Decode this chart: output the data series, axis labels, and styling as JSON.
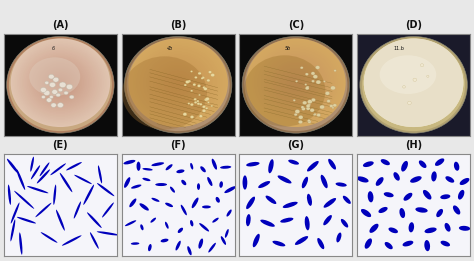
{
  "figure_width": 4.74,
  "figure_height": 2.61,
  "dpi": 100,
  "nrows": 2,
  "ncols": 4,
  "labels": [
    "(A)",
    "(B)",
    "(C)",
    "(D)",
    "(E)",
    "(F)",
    "(G)",
    "(H)"
  ],
  "label_fontsize": 7,
  "label_fontweight": "bold",
  "background_color": "#e8e8e8",
  "top_row_bg": "#111111",
  "bottom_row_bg": "#ffffff",
  "plate_colors": [
    {
      "bg": "#0a0a0a",
      "rim_outer": "#b08060",
      "rim_inner": "#c8a880",
      "surface": "#c4907a",
      "highlight": "#e0c4b0"
    },
    {
      "bg": "#0a0a0a",
      "rim_outer": "#907050",
      "rim_inner": "#b09070",
      "surface": "#c49050",
      "highlight": "#d4a860"
    },
    {
      "bg": "#0a0a0a",
      "rim_outer": "#907050",
      "rim_inner": "#b09070",
      "surface": "#c49060",
      "highlight": "#d4a860"
    },
    {
      "bg": "#1a1a2a",
      "rim_outer": "#b0a070",
      "rim_inner": "#c8b880",
      "surface": "#ddd0a0",
      "highlight": "#eee8c0"
    }
  ],
  "micro_bg": "#f5f5fa",
  "bacteria_color": "#0000bb",
  "border_color": "#888888",
  "label_color": "#111111",
  "outer_border_lw": 0.8
}
